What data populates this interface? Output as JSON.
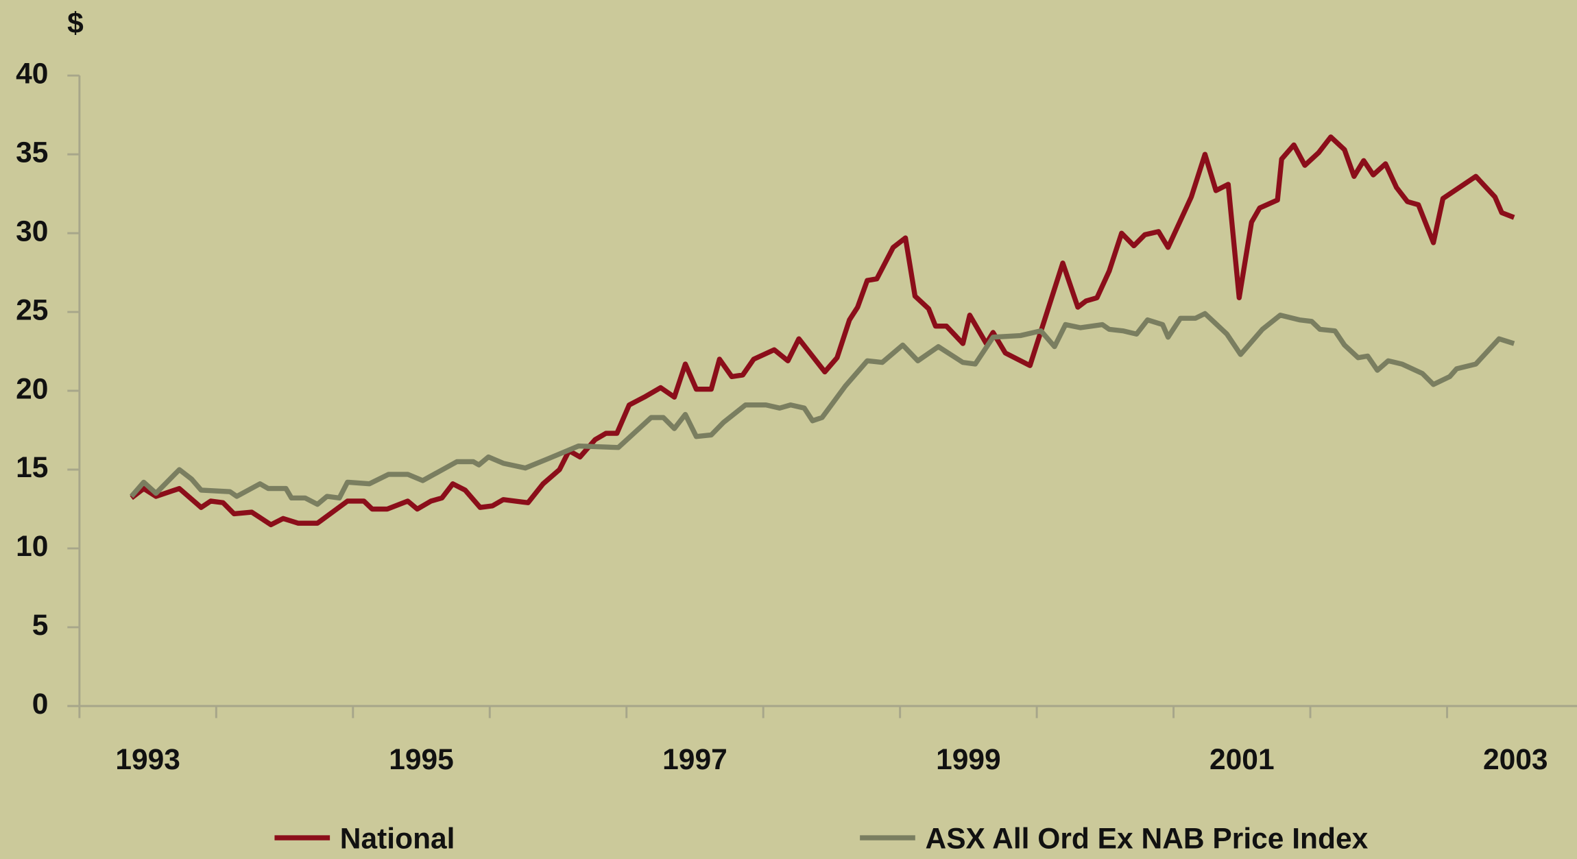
{
  "chart_data": {
    "type": "line",
    "y_axis_label": "$",
    "xlim": [
      1993,
      2003.95
    ],
    "xticks": [
      {
        "value": 1993.5,
        "label": "1993"
      },
      {
        "value": 1995.5,
        "label": "1995"
      },
      {
        "value": 1997.5,
        "label": "1997"
      },
      {
        "value": 1999.5,
        "label": "1999"
      },
      {
        "value": 2001.5,
        "label": "2001"
      },
      {
        "value": 2003.5,
        "label": "2003"
      }
    ],
    "xminor_ticks": [
      1993,
      1994,
      1995,
      1996,
      1997,
      1998,
      1999,
      2000,
      2001,
      2002,
      2003
    ],
    "ylim": [
      0,
      40
    ],
    "yticks": [
      0,
      5,
      10,
      15,
      20,
      25,
      30,
      35,
      40
    ],
    "grid": false,
    "legend": "bottom",
    "series": [
      {
        "name": "National",
        "color": "#8b0e1a",
        "x": [
          1993.38,
          1993.47,
          1993.56,
          1993.73,
          1993.89,
          1993.96,
          1994.05,
          1994.13,
          1994.26,
          1994.4,
          1994.49,
          1994.6,
          1994.74,
          1994.96,
          1995.08,
          1995.14,
          1995.25,
          1995.4,
          1995.47,
          1995.57,
          1995.65,
          1995.73,
          1995.82,
          1995.93,
          1996.02,
          1996.1,
          1996.28,
          1996.39,
          1996.51,
          1996.58,
          1996.66,
          1996.77,
          1996.85,
          1996.93,
          1997.02,
          1997.13,
          1997.25,
          1997.35,
          1997.43,
          1997.51,
          1997.62,
          1997.68,
          1997.77,
          1997.85,
          1997.93,
          1998.08,
          1998.18,
          1998.26,
          1998.45,
          1998.54,
          1998.63,
          1998.69,
          1998.76,
          1998.83,
          1998.95,
          1999.04,
          1999.11,
          1999.21,
          1999.26,
          1999.34,
          1999.46,
          1999.51,
          1999.63,
          1999.68,
          1999.77,
          1999.95,
          2000.19,
          2000.3,
          2000.36,
          2000.44,
          2000.53,
          2000.62,
          2000.71,
          2000.79,
          2000.89,
          2000.96,
          2001.13,
          2001.23,
          2001.31,
          2001.4,
          2001.48,
          2001.57,
          2001.63,
          2001.76,
          2001.79,
          2001.88,
          2001.96,
          2002.06,
          2002.15,
          2002.25,
          2002.32,
          2002.39,
          2002.46,
          2002.55,
          2002.63,
          2002.71,
          2002.79,
          2002.9,
          2002.97,
          2003.21,
          2003.35,
          2003.4,
          2003.49
        ],
        "values": [
          13.2,
          13.8,
          13.3,
          13.8,
          12.6,
          13.0,
          12.9,
          12.2,
          12.3,
          11.5,
          11.9,
          11.6,
          11.6,
          13.0,
          13.0,
          12.5,
          12.5,
          13.0,
          12.5,
          13.0,
          13.2,
          14.1,
          13.7,
          12.6,
          12.7,
          13.1,
          12.9,
          14.1,
          15.0,
          16.2,
          15.8,
          16.9,
          17.3,
          17.3,
          19.1,
          19.6,
          20.2,
          19.6,
          21.7,
          20.1,
          20.1,
          22.0,
          20.9,
          21.0,
          22.0,
          22.6,
          21.9,
          23.3,
          21.2,
          22.1,
          24.5,
          25.3,
          27.0,
          27.1,
          29.1,
          29.7,
          26.0,
          25.2,
          24.1,
          24.1,
          23.0,
          24.8,
          23.0,
          23.7,
          22.4,
          21.6,
          28.1,
          25.3,
          25.7,
          25.9,
          27.6,
          30.0,
          29.2,
          29.9,
          30.1,
          29.1,
          32.3,
          35.0,
          32.7,
          33.1,
          25.9,
          30.7,
          31.6,
          32.1,
          34.7,
          35.6,
          34.3,
          35.1,
          36.1,
          35.3,
          33.6,
          34.6,
          33.7,
          34.4,
          32.9,
          32.0,
          31.8,
          29.4,
          32.2,
          33.6,
          32.3,
          31.3,
          31.0
        ]
      },
      {
        "name": "ASX All Ord Ex NAB Price Index",
        "color": "#7a7e60",
        "x": [
          1993.38,
          1993.47,
          1993.56,
          1993.73,
          1993.82,
          1993.89,
          1994.1,
          1994.15,
          1994.32,
          1994.38,
          1994.51,
          1994.55,
          1994.65,
          1994.74,
          1994.81,
          1994.9,
          1994.96,
          1995.12,
          1995.26,
          1995.4,
          1995.51,
          1995.76,
          1995.88,
          1995.92,
          1995.99,
          1996.1,
          1996.26,
          1996.43,
          1996.65,
          1996.94,
          1997.18,
          1997.27,
          1997.35,
          1997.43,
          1997.51,
          1997.62,
          1997.71,
          1997.87,
          1998.02,
          1998.12,
          1998.2,
          1998.3,
          1998.36,
          1998.43,
          1998.6,
          1998.76,
          1998.87,
          1999.02,
          1999.13,
          1999.28,
          1999.46,
          1999.55,
          1999.68,
          1999.88,
          2000.03,
          2000.13,
          2000.21,
          2000.32,
          2000.48,
          2000.53,
          2000.63,
          2000.73,
          2000.81,
          2000.92,
          2000.96,
          2001.05,
          2001.16,
          2001.23,
          2001.39,
          2001.49,
          2001.65,
          2001.78,
          2001.92,
          2002.01,
          2002.07,
          2002.18,
          2002.25,
          2002.35,
          2002.42,
          2002.49,
          2002.57,
          2002.67,
          2002.82,
          2002.9,
          2003.02,
          2003.07,
          2003.21,
          2003.38,
          2003.49
        ],
        "values": [
          13.3,
          14.2,
          13.5,
          15.0,
          14.4,
          13.7,
          13.6,
          13.3,
          14.1,
          13.8,
          13.8,
          13.2,
          13.2,
          12.8,
          13.3,
          13.2,
          14.2,
          14.1,
          14.7,
          14.7,
          14.3,
          15.5,
          15.5,
          15.3,
          15.8,
          15.4,
          15.1,
          15.7,
          16.5,
          16.4,
          18.3,
          18.3,
          17.6,
          18.5,
          17.1,
          17.2,
          18.0,
          19.1,
          19.1,
          18.9,
          19.1,
          18.9,
          18.1,
          18.3,
          20.3,
          21.9,
          21.8,
          22.9,
          21.9,
          22.8,
          21.8,
          21.7,
          23.4,
          23.5,
          23.8,
          22.8,
          24.2,
          24.0,
          24.2,
          23.9,
          23.8,
          23.6,
          24.5,
          24.2,
          23.4,
          24.6,
          24.6,
          24.9,
          23.6,
          22.3,
          23.9,
          24.8,
          24.5,
          24.4,
          23.9,
          23.8,
          22.9,
          22.1,
          22.2,
          21.3,
          21.9,
          21.7,
          21.1,
          20.4,
          20.9,
          21.4,
          21.7,
          23.3,
          23.0
        ]
      }
    ]
  }
}
